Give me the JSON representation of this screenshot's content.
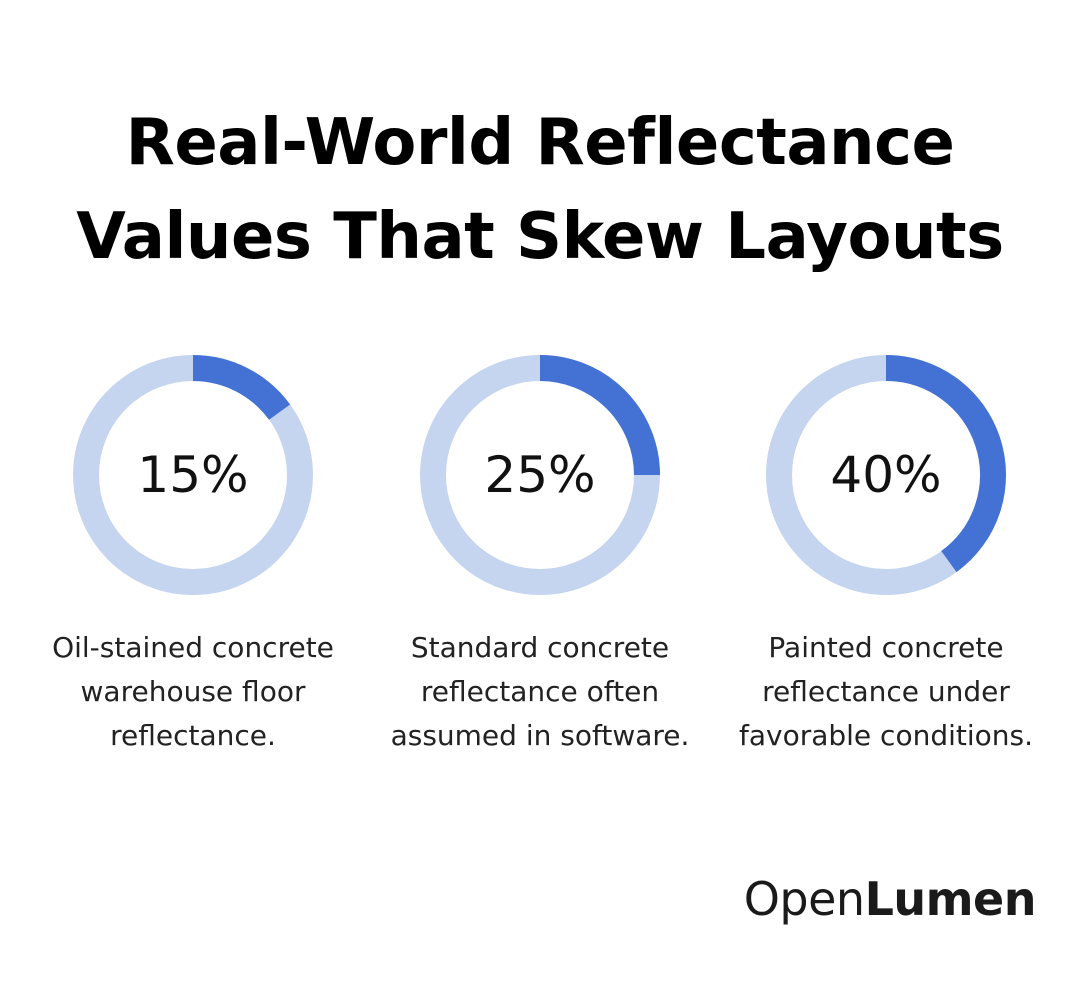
{
  "title": {
    "line1": "Real-World Reflectance",
    "line2": "Values That Skew Layouts"
  },
  "chart_data": {
    "type": "pie",
    "subtype": "donut",
    "unit": "%",
    "items": [
      {
        "value": 15,
        "label": "15%",
        "caption": "Oil-stained concrete warehouse floor reflectance."
      },
      {
        "value": 25,
        "label": "25%",
        "caption": "Standard concrete reflectance often assumed in software."
      },
      {
        "value": 40,
        "label": "40%",
        "caption": "Painted concrete reflectance under favorable conditions."
      }
    ],
    "colors": {
      "filled": "#4472d4",
      "track": "#c5d5f0"
    }
  },
  "brand": {
    "light": "Open",
    "bold": "Lumen"
  }
}
